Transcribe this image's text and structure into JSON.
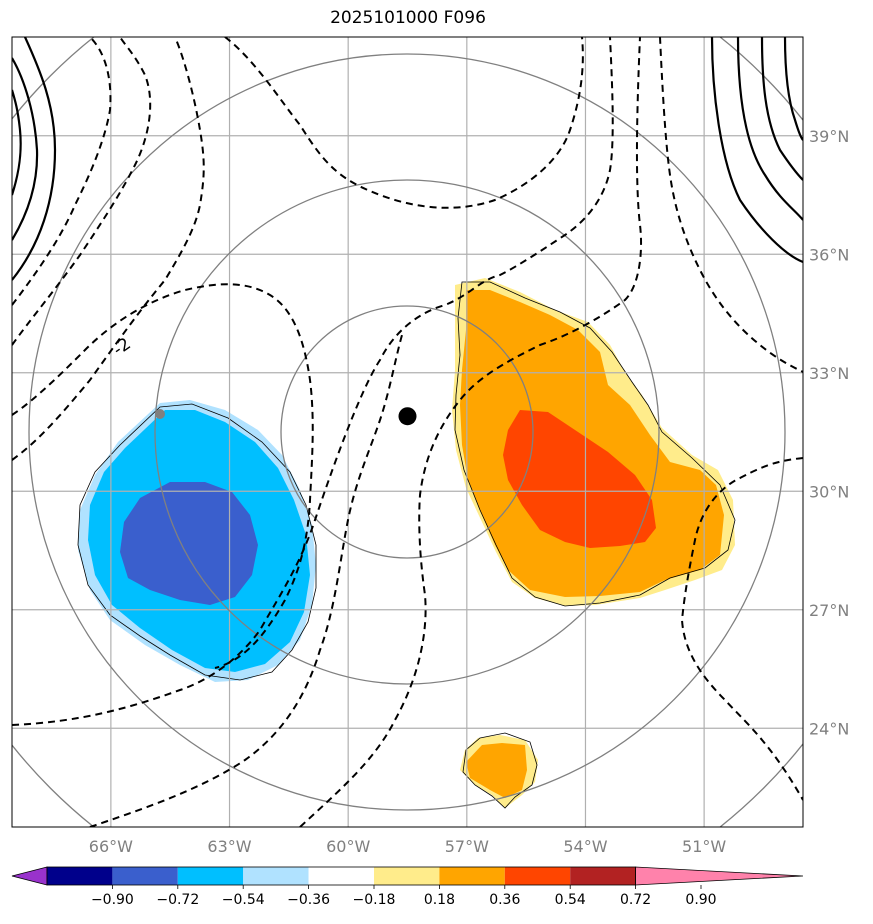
{
  "title": "2025101000 F096",
  "map": {
    "lon_range": [
      -68.5,
      -48.5
    ],
    "lat_range": [
      21.5,
      41.5
    ],
    "lon_ticks": [
      {
        "value": -66,
        "label": "66°W"
      },
      {
        "value": -63,
        "label": "63°W"
      },
      {
        "value": -60,
        "label": "60°W"
      },
      {
        "value": -57,
        "label": "57°W"
      },
      {
        "value": -54,
        "label": "54°W"
      },
      {
        "value": -51,
        "label": "51°W"
      }
    ],
    "lat_ticks": [
      {
        "value": 24,
        "label": "24°N"
      },
      {
        "value": 27,
        "label": "27°N"
      },
      {
        "value": 30,
        "label": "30°N"
      },
      {
        "value": 33,
        "label": "33°N"
      },
      {
        "value": 36,
        "label": "36°N"
      },
      {
        "value": 39,
        "label": "39°N"
      }
    ],
    "center": {
      "lon": -58.5,
      "lat": 31.9
    },
    "contour_label": "-2",
    "gridline_color": "#b0b0b0",
    "range_ring_color": "#808080"
  },
  "colorbar": {
    "levels": [
      "−0.90",
      "−0.72",
      "−0.54",
      "−0.36",
      "−0.18",
      "0.18",
      "0.36",
      "0.54",
      "0.72",
      "0.90"
    ],
    "colors": [
      "#9932cc",
      "#00008b",
      "#3a5fcd",
      "#00bfff",
      "#b0e2ff",
      "#ffffff",
      "#ffec8b",
      "#ffa500",
      "#ff4500",
      "#b22222",
      "#ff82ab"
    ]
  }
}
